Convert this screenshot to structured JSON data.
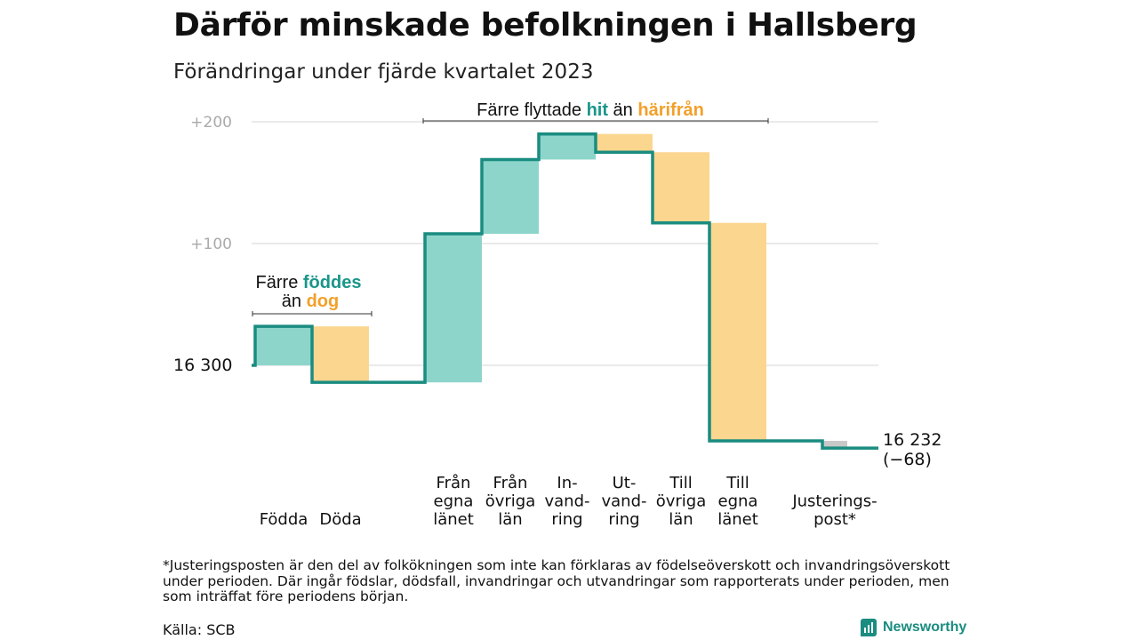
{
  "title": "Därför minskade befolkningen i Hallsberg",
  "subtitle": "Förändringar under fjärde kvartalet 2023",
  "footnote": "*Justeringsposten är den del av folkökningen som inte kan förklaras av födelseöverskott och invandringsöverskott under perioden. Där ingår födslar, dödsfall, invandringar och utvandringar som rapporterats under perioden, men som inträffat före periodens början.",
  "source": "Källa: SCB",
  "brand": "Newsworthy",
  "colors": {
    "increase": "#8dd5cb",
    "decrease": "#fbd68f",
    "adjustment": "#c8c8c8",
    "line": "#1a8c80",
    "grid": "#dddddd",
    "teal_text": "#1a968a",
    "orange_text": "#f2a02a"
  },
  "chart_data": {
    "type": "waterfall",
    "baseline": 16300,
    "start_label": "16  300",
    "end_label": [
      "16 232",
      "(−68)"
    ],
    "end_value": 16232,
    "y_tick_labels": [
      "+200",
      "+100"
    ],
    "y_tick_values": [
      200,
      100
    ],
    "ylim": [
      -80,
      200
    ],
    "grid": true,
    "steps": [
      {
        "label": [
          "Födda"
        ],
        "delta": 32,
        "kind": "increase"
      },
      {
        "label": [
          "Döda"
        ],
        "delta": -46,
        "kind": "decrease"
      },
      {
        "label": [
          "Från",
          "egna",
          "länet"
        ],
        "delta": 122,
        "kind": "increase"
      },
      {
        "label": [
          "Från",
          "övriga",
          "län"
        ],
        "delta": 61,
        "kind": "increase"
      },
      {
        "label": [
          "In-",
          "vand-",
          "ring"
        ],
        "delta": 21,
        "kind": "increase"
      },
      {
        "label": [
          "Ut-",
          "vand-",
          "ring"
        ],
        "delta": -15,
        "kind": "decrease"
      },
      {
        "label": [
          "Till",
          "övriga",
          "län"
        ],
        "delta": -58,
        "kind": "decrease"
      },
      {
        "label": [
          "Till",
          "egna",
          "länet"
        ],
        "delta": -179,
        "kind": "decrease"
      },
      {
        "label": [
          "Justerings-",
          "post*"
        ],
        "delta": -6,
        "kind": "adjustment"
      }
    ],
    "annotations": [
      {
        "line1": "Färre",
        "word1": "föddes",
        "line2": "än",
        "word2": "dog"
      },
      {
        "line1": "Färre flyttade",
        "word1": "hit",
        "line2": "än",
        "word2": "härifrån"
      }
    ]
  }
}
